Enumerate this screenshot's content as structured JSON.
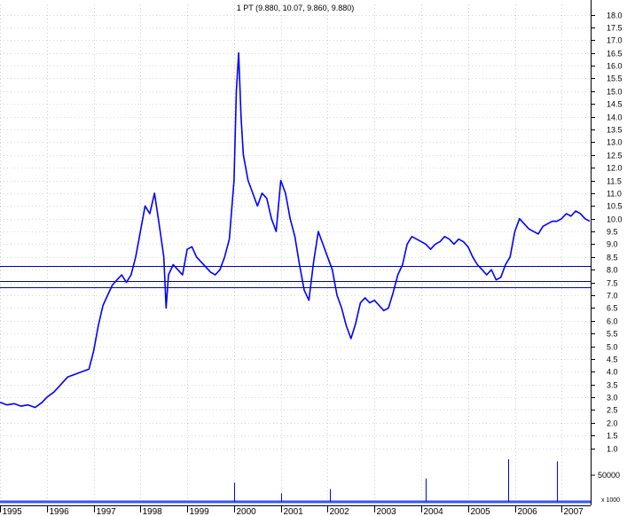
{
  "chart_data": {
    "type": "line",
    "title": "1 PT (9.880, 10.07, 9.860, 9.880)",
    "y_ticks": [
      "18.0",
      "17.5",
      "17.0",
      "16.5",
      "16.0",
      "15.5",
      "15.0",
      "14.5",
      "14.0",
      "13.5",
      "13.0",
      "12.5",
      "12.0",
      "11.5",
      "11.0",
      "10.5",
      "10.0",
      "9.5",
      "9.0",
      "8.5",
      "8.0",
      "7.5",
      "7.0",
      "6.5",
      "6.0",
      "5.5",
      "5.0",
      "4.5",
      "4.0",
      "3.5",
      "3.0",
      "2.5",
      "2.0",
      "1.5",
      "1.0"
    ],
    "ylim": [
      0.5,
      18.4
    ],
    "x_ticks": [
      "1995",
      "1996",
      "1997",
      "1998",
      "1999",
      "2000",
      "2001",
      "2002",
      "2003",
      "2004",
      "2005",
      "2006",
      "2007"
    ],
    "xlim": [
      1995.0,
      2007.62
    ],
    "volume_tick": "50000",
    "volume_unit_label": "x 1000",
    "horizontal_lines": [
      8.15,
      7.55,
      7.3
    ],
    "series": [
      {
        "color": "#0000ff",
        "x": [
          1995.0,
          1995.15,
          1995.3,
          1995.45,
          1995.6,
          1995.75,
          1995.9,
          1996.0,
          1996.15,
          1996.3,
          1996.45,
          1996.6,
          1996.75,
          1996.9,
          1997.0,
          1997.1,
          1997.2,
          1997.3,
          1997.4,
          1997.5,
          1997.6,
          1997.7,
          1997.8,
          1997.9,
          1998.0,
          1998.1,
          1998.2,
          1998.3,
          1998.4,
          1998.5,
          1998.55,
          1998.6,
          1998.7,
          1998.8,
          1998.9,
          1999.0,
          1999.1,
          1999.2,
          1999.3,
          1999.4,
          1999.5,
          1999.6,
          1999.7,
          1999.8,
          1999.9,
          2000.0,
          2000.05,
          2000.1,
          2000.15,
          2000.2,
          2000.3,
          2000.4,
          2000.5,
          2000.6,
          2000.7,
          2000.8,
          2000.9,
          2001.0,
          2001.1,
          2001.2,
          2001.3,
          2001.4,
          2001.5,
          2001.6,
          2001.7,
          2001.8,
          2001.9,
          2002.0,
          2002.1,
          2002.2,
          2002.3,
          2002.4,
          2002.5,
          2002.6,
          2002.7,
          2002.8,
          2002.9,
          2003.0,
          2003.1,
          2003.2,
          2003.3,
          2003.4,
          2003.5,
          2003.6,
          2003.7,
          2003.8,
          2003.9,
          2004.0,
          2004.1,
          2004.2,
          2004.3,
          2004.4,
          2004.5,
          2004.6,
          2004.7,
          2004.8,
          2004.9,
          2005.0,
          2005.1,
          2005.2,
          2005.3,
          2005.4,
          2005.5,
          2005.6,
          2005.7,
          2005.8,
          2005.9,
          2006.0,
          2006.1,
          2006.2,
          2006.3,
          2006.4,
          2006.5,
          2006.6,
          2006.7,
          2006.8,
          2006.9,
          2007.0,
          2007.1,
          2007.2,
          2007.3,
          2007.4,
          2007.5,
          2007.6
        ],
        "y": [
          2.8,
          2.7,
          2.75,
          2.65,
          2.7,
          2.6,
          2.8,
          3.0,
          3.2,
          3.5,
          3.8,
          3.9,
          4.0,
          4.1,
          4.8,
          5.8,
          6.6,
          7.0,
          7.4,
          7.6,
          7.8,
          7.5,
          7.8,
          8.5,
          9.5,
          10.5,
          10.2,
          11.0,
          9.8,
          8.5,
          6.5,
          7.8,
          8.2,
          8.0,
          7.8,
          8.8,
          8.9,
          8.5,
          8.3,
          8.1,
          7.9,
          7.8,
          8.0,
          8.5,
          9.2,
          11.5,
          15.0,
          16.5,
          14.0,
          12.5,
          11.5,
          11.0,
          10.5,
          11.0,
          10.8,
          10.0,
          9.5,
          11.5,
          11.0,
          10.0,
          9.3,
          8.2,
          7.2,
          6.8,
          8.3,
          9.5,
          9.0,
          8.5,
          8.0,
          7.0,
          6.5,
          5.8,
          5.3,
          5.9,
          6.7,
          6.9,
          6.7,
          6.8,
          6.6,
          6.4,
          6.5,
          7.1,
          7.8,
          8.2,
          9.0,
          9.3,
          9.2,
          9.1,
          9.0,
          8.8,
          9.0,
          9.1,
          9.3,
          9.2,
          9.0,
          9.2,
          9.1,
          8.9,
          8.5,
          8.2,
          8.0,
          7.8,
          8.0,
          7.6,
          7.7,
          8.2,
          8.5,
          9.5,
          10.0,
          9.8,
          9.6,
          9.5,
          9.4,
          9.7,
          9.8,
          9.9,
          9.9,
          10.0,
          10.2,
          10.1,
          10.3,
          10.2,
          10.0,
          9.9
        ]
      }
    ],
    "volume": [
      {
        "x": 2000.0,
        "v": 0.45
      },
      {
        "x": 2004.1,
        "v": 0.55
      },
      {
        "x": 2005.85,
        "v": 1.0
      },
      {
        "x": 2006.9,
        "v": 0.95
      },
      {
        "x": 2002.05,
        "v": 0.3
      },
      {
        "x": 2001.0,
        "v": 0.2
      }
    ]
  }
}
